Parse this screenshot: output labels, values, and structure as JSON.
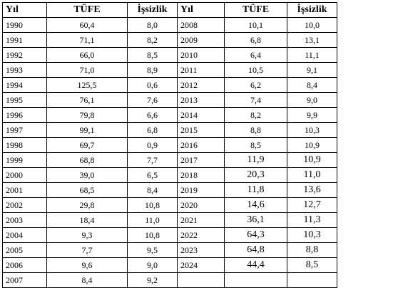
{
  "headers": {
    "year": "Yıl",
    "cpi": "TÜFE",
    "unemployment": "İşsizlik"
  },
  "left": [
    {
      "year": "1990",
      "cpi": "60,4",
      "unemp": "8,0"
    },
    {
      "year": "1991",
      "cpi": "71,1",
      "unemp": "8,2"
    },
    {
      "year": "1992",
      "cpi": "66,0",
      "unemp": "8,5"
    },
    {
      "year": "1993",
      "cpi": "71,0",
      "unemp": "8,9"
    },
    {
      "year": "1994",
      "cpi": "125,5",
      "unemp": "0,6"
    },
    {
      "year": "1995",
      "cpi": "76,1",
      "unemp": "7,6"
    },
    {
      "year": "1996",
      "cpi": "79,8",
      "unemp": "6,6"
    },
    {
      "year": "1997",
      "cpi": "99,1",
      "unemp": "6,8"
    },
    {
      "year": "1998",
      "cpi": "69,7",
      "unemp": "0,9"
    },
    {
      "year": "1999",
      "cpi": "68,8",
      "unemp": "7,7"
    },
    {
      "year": "2000",
      "cpi": "39,0",
      "unemp": "6,5"
    },
    {
      "year": "2001",
      "cpi": "68,5",
      "unemp": "8,4"
    },
    {
      "year": "2002",
      "cpi": "29,8",
      "unemp": "10,8"
    },
    {
      "year": "2003",
      "cpi": "18,4",
      "unemp": "11,0"
    },
    {
      "year": "2004",
      "cpi": "9,3",
      "unemp": "10,8"
    },
    {
      "year": "2005",
      "cpi": "7,7",
      "unemp": "9,5"
    },
    {
      "year": "2006",
      "cpi": "9,6",
      "unemp": "9,0"
    },
    {
      "year": "2007",
      "cpi": "8,4",
      "unemp": "9,2"
    }
  ],
  "right": [
    {
      "year": "2008",
      "cpi": "10,1",
      "unemp": "10,0"
    },
    {
      "year": "2009",
      "cpi": "6,8",
      "unemp": "13,1"
    },
    {
      "year": "2010",
      "cpi": "6,4",
      "unemp": "11,1"
    },
    {
      "year": "2011",
      "cpi": "10,5",
      "unemp": "9,1"
    },
    {
      "year": "2012",
      "cpi": "6,2",
      "unemp": "8,4"
    },
    {
      "year": "2013",
      "cpi": "7,4",
      "unemp": "9,0"
    },
    {
      "year": "2014",
      "cpi": "8,2",
      "unemp": "9,9"
    },
    {
      "year": "2015",
      "cpi": "8,8",
      "unemp": "10,3"
    },
    {
      "year": "2016",
      "cpi": "8,5",
      "unemp": "10,9"
    },
    {
      "year": "2017",
      "cpi": "11,9",
      "unemp": "10,9"
    },
    {
      "year": "2018",
      "cpi": "20,3",
      "unemp": "11,0"
    },
    {
      "year": "2019",
      "cpi": "11,8",
      "unemp": "13,6"
    },
    {
      "year": "2020",
      "cpi": "14,6",
      "unemp": "12,7"
    },
    {
      "year": "2021",
      "cpi": "36,1",
      "unemp": "11,3"
    },
    {
      "year": "2022",
      "cpi": "64,3",
      "unemp": "10,3"
    },
    {
      "year": "2023",
      "cpi": "64,8",
      "unemp": "8,8"
    },
    {
      "year": "2024",
      "cpi": "44,4",
      "unemp": "8,5"
    },
    {
      "year": "",
      "cpi": "",
      "unemp": ""
    }
  ]
}
